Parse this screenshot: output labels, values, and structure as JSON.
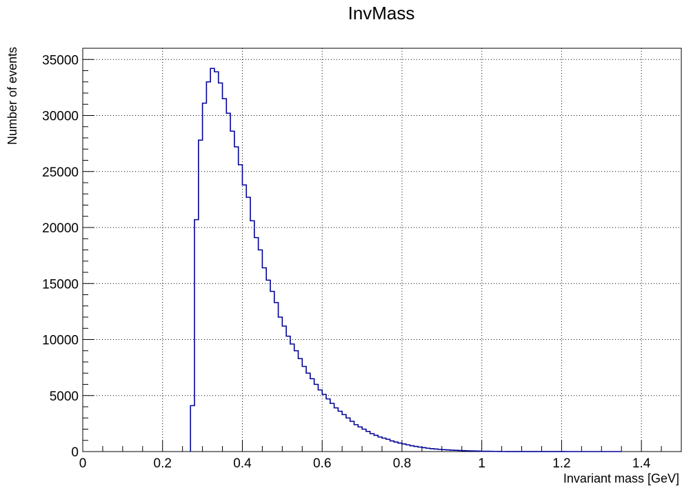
{
  "chart_data": {
    "type": "histogram",
    "title": "InvMass",
    "xlabel": "Invariant mass [GeV]",
    "ylabel": "Number of events",
    "xlim": [
      0,
      1.5
    ],
    "ylim": [
      0,
      36000
    ],
    "grid": true,
    "x_ticks": [
      0,
      0.2,
      0.4,
      0.6,
      0.8,
      1,
      1.2,
      1.4
    ],
    "x_tick_labels": [
      "0",
      "0.2",
      "0.4",
      "0.6",
      "0.8",
      "1",
      "1.2",
      "1.4"
    ],
    "y_ticks": [
      0,
      5000,
      10000,
      15000,
      20000,
      25000,
      30000,
      35000
    ],
    "y_tick_labels": [
      "0",
      "5000",
      "10000",
      "15000",
      "20000",
      "25000",
      "30000",
      "35000"
    ],
    "bin_edges_start": 0.27,
    "bin_width": 0.01,
    "bin_edges_end": 1.35,
    "values": [
      4100,
      20700,
      27800,
      31100,
      33000,
      34200,
      33900,
      32900,
      31500,
      30200,
      28600,
      27200,
      25600,
      23800,
      22700,
      20600,
      19100,
      18000,
      16400,
      15300,
      14300,
      13300,
      12000,
      11200,
      10300,
      9600,
      9000,
      8300,
      7600,
      7000,
      6500,
      6000,
      5500,
      5100,
      4700,
      4300,
      3900,
      3600,
      3300,
      3000,
      2700,
      2400,
      2200,
      2000,
      1800,
      1600,
      1450,
      1300,
      1200,
      1100,
      950,
      850,
      760,
      680,
      600,
      520,
      460,
      400,
      350,
      300,
      260,
      230,
      200,
      170,
      150,
      130,
      110,
      95,
      80,
      70,
      60,
      50,
      40,
      30,
      25,
      20,
      15,
      10,
      8,
      6,
      5,
      4,
      3,
      2,
      2,
      1,
      1,
      1,
      1,
      1,
      1,
      1,
      1,
      1,
      0,
      0,
      0,
      0,
      0,
      0,
      0,
      0,
      0,
      0,
      0,
      0,
      0,
      0
    ],
    "line_color": "#000099",
    "grid_color": "#000000",
    "legend": "none"
  }
}
